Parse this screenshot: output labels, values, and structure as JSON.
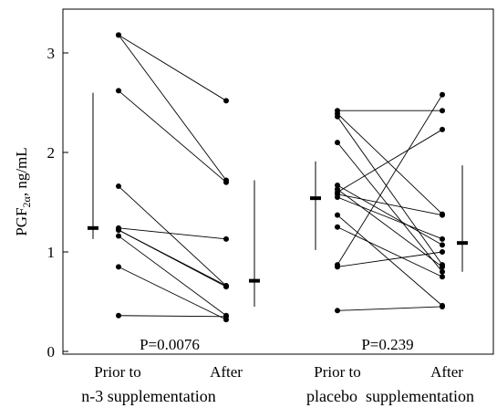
{
  "chart_data": {
    "type": "scatter",
    "ylabel": "PGF2α, ng/mL",
    "ylabel_parts": {
      "main": "PGF",
      "sub": "2α",
      "rest": ", ng/mL"
    },
    "ylim": [
      0,
      3.4
    ],
    "y_ticks": [
      "0",
      "1",
      "2",
      "3"
    ],
    "x_tick_labels": [
      "Prior to",
      "After",
      "Prior to",
      "After"
    ],
    "group_labels": [
      "n-3 supplementation",
      "placebo  supplementation"
    ],
    "groups": [
      {
        "name": "n-3 supplementation",
        "p_value_label": "P=0.0076",
        "pairs": [
          [
            3.18,
            1.72
          ],
          [
            3.18,
            2.52
          ],
          [
            2.62,
            1.7
          ],
          [
            1.66,
            0.66
          ],
          [
            1.24,
            1.13
          ],
          [
            1.22,
            0.65
          ],
          [
            1.22,
            0.66
          ],
          [
            1.16,
            0.36
          ],
          [
            0.85,
            0.32
          ],
          [
            0.36,
            0.35
          ]
        ],
        "prior_summary": {
          "median": 1.24,
          "low": 1.13,
          "high": 2.6
        },
        "after_summary": {
          "median": 0.71,
          "low": 0.45,
          "high": 1.72
        }
      },
      {
        "name": "placebo supplementation",
        "p_value_label": "P=0.239",
        "pairs": [
          [
            2.42,
            2.42
          ],
          [
            2.39,
            1.38
          ],
          [
            2.36,
            0.87
          ],
          [
            2.1,
            0.8
          ],
          [
            1.67,
            1.07
          ],
          [
            1.63,
            0.85
          ],
          [
            1.6,
            2.23
          ],
          [
            1.58,
            1.37
          ],
          [
            1.55,
            1.13
          ],
          [
            1.37,
            0.46
          ],
          [
            1.25,
            0.75
          ],
          [
            0.87,
            2.58
          ],
          [
            0.85,
            1.0
          ],
          [
            0.41,
            0.45
          ]
        ],
        "prior_summary": {
          "median": 1.54,
          "low": 1.02,
          "high": 1.91
        },
        "after_summary": {
          "median": 1.09,
          "low": 0.8,
          "high": 1.87
        }
      }
    ]
  }
}
